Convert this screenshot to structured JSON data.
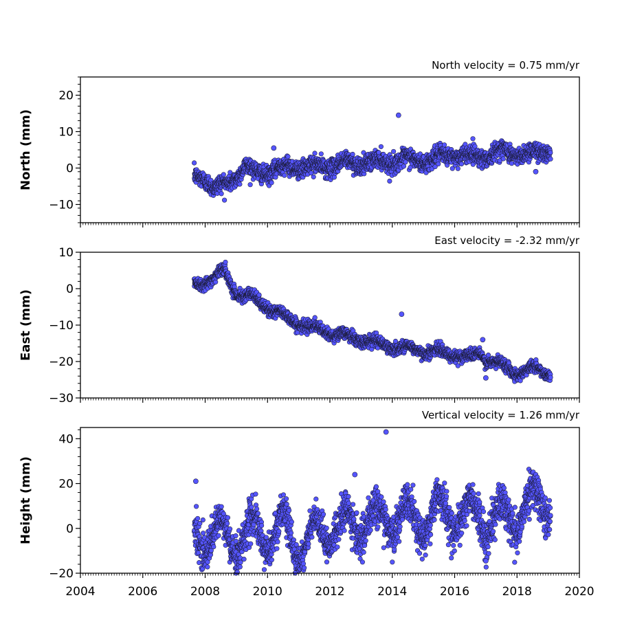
{
  "chart_data": [
    {
      "type": "scatter",
      "title": "North velocity = 0.75 mm/yr",
      "xlabel": "",
      "ylabel": "North (mm)",
      "xlim": [
        2004,
        2020
      ],
      "ylim": [
        -15,
        25
      ],
      "yticks": [
        -10,
        0,
        10,
        20
      ],
      "ytick_labels": [
        "−10",
        "0",
        "10",
        "20"
      ],
      "grid": false,
      "marker_color": "#5555ff",
      "series_model": {
        "t0": 2007.65,
        "t1": 2019.08,
        "start": -2.4,
        "rate": 0.75,
        "seasonal_amp": 1.0,
        "noise_sd": 1.2
      },
      "series": [
        {
          "x": [
            2007.7,
            2007.9,
            2008.1,
            2008.3,
            2008.5,
            2008.7,
            2009.0,
            2009.3,
            2009.6,
            2010.0,
            2010.5,
            2011.0,
            2011.5,
            2012.0,
            2012.5,
            2013.0,
            2013.5,
            2014.0,
            2014.5,
            2015.0,
            2015.5,
            2016.0,
            2016.5,
            2017.0,
            2017.5,
            2018.0,
            2018.5,
            2019.0
          ],
          "y": [
            -2.5,
            -2.0,
            -3.5,
            -6.0,
            -5.0,
            -4.5,
            -2.0,
            0.5,
            -1.5,
            -1.0,
            0.0,
            0.5,
            0.0,
            0.8,
            1.2,
            1.5,
            1.5,
            2.0,
            2.2,
            2.0,
            2.8,
            4.0,
            3.0,
            3.5,
            4.5,
            4.0,
            3.8,
            5.0
          ]
        }
      ],
      "outliers": [
        {
          "x": 2014.2,
          "y": 14.5
        },
        {
          "x": 2010.2,
          "y": 5.5
        },
        {
          "x": 2018.6,
          "y": -1.0
        }
      ]
    },
    {
      "type": "scatter",
      "title": "East velocity = -2.32 mm/yr",
      "xlabel": "",
      "ylabel": "East (mm)",
      "xlim": [
        2004,
        2020
      ],
      "ylim": [
        -30,
        10
      ],
      "yticks": [
        -30,
        -20,
        -10,
        0,
        10
      ],
      "ytick_labels": [
        "−30",
        "−20",
        "−10",
        "0",
        "10"
      ],
      "grid": false,
      "marker_color": "#5555ff",
      "series_model": {
        "t0": 2007.65,
        "t1": 2019.08,
        "start": 1.0,
        "rate": -2.32,
        "seasonal_amp": 0.8,
        "noise_sd": 0.8
      },
      "series": [
        {
          "x": [
            2007.7,
            2008.0,
            2008.3,
            2008.6,
            2009.0,
            2009.5,
            2010.0,
            2010.5,
            2011.0,
            2011.5,
            2012.0,
            2012.5,
            2013.0,
            2013.5,
            2014.0,
            2014.5,
            2015.0,
            2015.5,
            2016.0,
            2016.5,
            2016.8,
            2017.0,
            2017.5,
            2018.0,
            2018.5,
            2019.0
          ],
          "y": [
            1.5,
            2.0,
            3.0,
            5.0,
            -1.0,
            -2.5,
            -5.0,
            -7.5,
            -9.5,
            -11.0,
            -12.0,
            -13.0,
            -14.0,
            -15.0,
            -16.0,
            -16.5,
            -17.0,
            -17.5,
            -18.0,
            -19.0,
            -17.5,
            -19.5,
            -21.0,
            -23.0,
            -22.0,
            -23.0
          ]
        }
      ],
      "outliers": [
        {
          "x": 2014.3,
          "y": -7.0
        },
        {
          "x": 2016.9,
          "y": -14.0
        },
        {
          "x": 2017.0,
          "y": -24.5
        }
      ]
    },
    {
      "type": "scatter",
      "title": "Vertical velocity = 1.26 mm/yr",
      "xlabel": "",
      "ylabel": "Height (mm)",
      "xlim": [
        2004,
        2020
      ],
      "ylim": [
        -20,
        45
      ],
      "yticks": [
        -20,
        0,
        20,
        40
      ],
      "ytick_labels": [
        "−20",
        "0",
        "20",
        "40"
      ],
      "xticks": [
        2004,
        2006,
        2008,
        2010,
        2012,
        2014,
        2016,
        2018,
        2020
      ],
      "xtick_labels": [
        "2004",
        "2006",
        "2008",
        "2010",
        "2012",
        "2014",
        "2016",
        "2018",
        "2020"
      ],
      "grid": false,
      "marker_color": "#5555ff",
      "series_model": {
        "t0": 2007.65,
        "t1": 2019.08,
        "start": -4.0,
        "rate": 1.26,
        "seasonal_amp": 6.0,
        "noise_sd": 4.0
      },
      "series": [
        {
          "x": [
            2007.7,
            2008.0,
            2008.5,
            2009.0,
            2009.5,
            2010.0,
            2010.5,
            2011.0,
            2011.5,
            2012.0,
            2012.5,
            2013.0,
            2013.5,
            2014.0,
            2014.5,
            2015.0,
            2015.5,
            2016.0,
            2016.5,
            2017.0,
            2017.5,
            2018.0,
            2018.5,
            2019.0
          ],
          "y": [
            -3.0,
            -6.0,
            -2.0,
            -7.0,
            0.0,
            -5.0,
            2.0,
            -10.0,
            -3.0,
            -1.0,
            2.0,
            1.0,
            5.0,
            3.0,
            6.0,
            1.0,
            10.0,
            4.0,
            8.0,
            2.0,
            6.0,
            4.0,
            14.0,
            10.0
          ]
        }
      ],
      "outliers": [
        {
          "x": 2013.8,
          "y": 43.0
        },
        {
          "x": 2007.7,
          "y": 21.0
        },
        {
          "x": 2012.8,
          "y": 24.0
        },
        {
          "x": 2017.0,
          "y": -14.5
        }
      ]
    }
  ]
}
